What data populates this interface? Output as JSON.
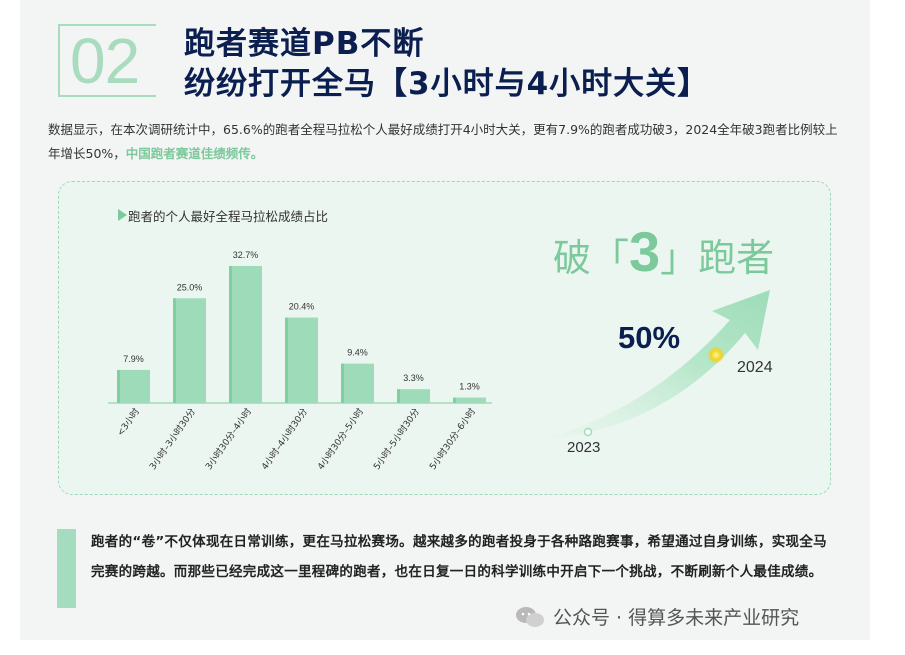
{
  "section": {
    "number": "02",
    "title_line1": "跑者赛道PB不断",
    "title_line2": "纷纷打开全马【3小时与4小时大关】"
  },
  "intro": {
    "text": "数据显示，在本次调研统计中，65.6%的跑者全程马拉松个人最好成绩打开4小时大关，更有7.9%的跑者成功破3，2024全年破3跑者比例较上年增长50%，",
    "highlight": "中国跑者赛道佳绩频传。"
  },
  "chart_data": {
    "type": "bar",
    "title": "跑者的个人最好全程马拉松成绩占比",
    "categories": [
      "<3小时",
      "3小时–3小时30分",
      "3小时30分–4小时",
      "4小时–4小时30分",
      "4小时30分–5小时",
      "5小时–5小时30分",
      "5小时30分–6小时"
    ],
    "values": [
      7.9,
      25.0,
      32.7,
      20.4,
      9.4,
      3.3,
      1.3
    ],
    "value_labels": [
      "7.9%",
      "25.0%",
      "32.7%",
      "20.4%",
      "9.4%",
      "3.3%",
      "1.3%"
    ],
    "ylim": [
      0,
      35
    ],
    "grid": false,
    "colors": {
      "bar": "#9edcb9",
      "bar_edge": "#7fcf9f"
    }
  },
  "highlight_panel": {
    "prefix": "破「",
    "number": "3",
    "suffix": "」跑者",
    "growth": "50%",
    "year_start": "2023",
    "year_end": "2024"
  },
  "quote": {
    "text": "跑者的“卷”不仅体现在日常训练，更在马拉松赛场。越来越多的跑者投身于各种路跑赛事，希望通过自身训练，实现全马完赛的跨越。而那些已经完成这一里程碑的跑者，也在日复一日的科学训练中开启下一个挑战，不断刷新个人最佳成绩。"
  },
  "watermark": {
    "text": "公众号 · 得算多未来产业研究",
    "icon": "wechat-icon"
  },
  "colors": {
    "accent": "#7cc99c",
    "navy": "#0a1f4f"
  }
}
